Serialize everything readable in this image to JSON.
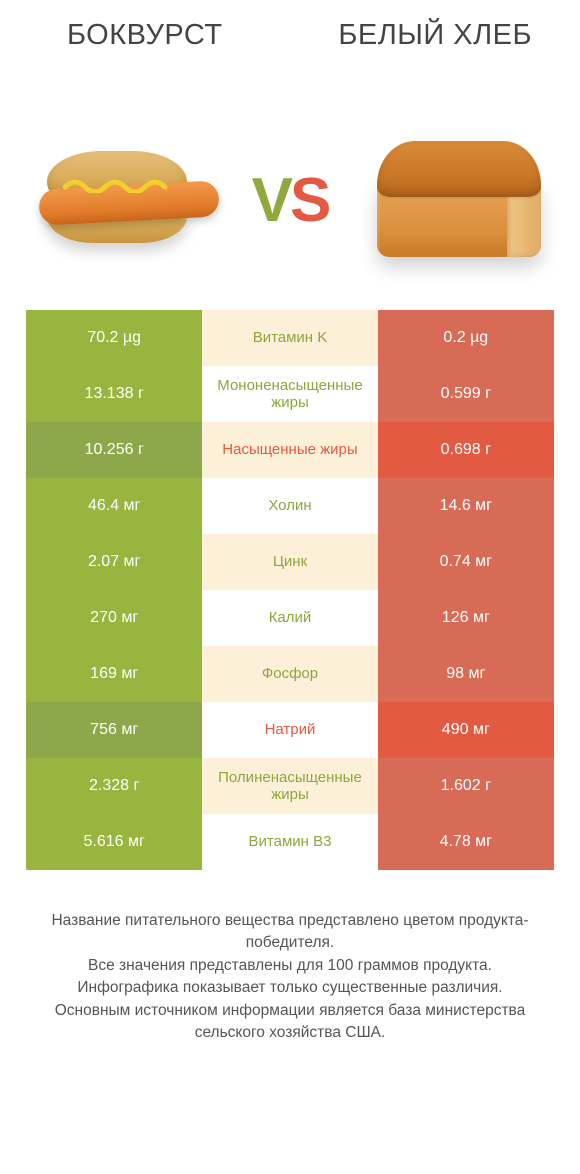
{
  "titles": {
    "left": "БОКВУРСТ",
    "right": "БЕЛЫЙ ХЛЕБ"
  },
  "vs": {
    "v": "V",
    "s": "S"
  },
  "colors": {
    "winner_green": "#98b540",
    "loser_green": "#8da84a",
    "winner_orange": "#e25a41",
    "loser_orange": "#d86b55",
    "mid_text_green": "#8da63e",
    "mid_text_orange": "#e25a41",
    "row_mid_bg_a": "#fdf0d9",
    "row_mid_bg_b": "#ffffff",
    "title_color": "#444444",
    "footnote_color": "#555555",
    "white": "#ffffff"
  },
  "rows": [
    {
      "left": "70.2 µg",
      "mid": "Витамин K",
      "right": "0.2 µg",
      "winner": "left"
    },
    {
      "left": "13.138 г",
      "mid": "Мононенасыщенные жиры",
      "right": "0.599 г",
      "winner": "left"
    },
    {
      "left": "10.256 г",
      "mid": "Насыщенные жиры",
      "right": "0.698 г",
      "winner": "right"
    },
    {
      "left": "46.4 мг",
      "mid": "Холин",
      "right": "14.6 мг",
      "winner": "left"
    },
    {
      "left": "2.07 мг",
      "mid": "Цинк",
      "right": "0.74 мг",
      "winner": "left"
    },
    {
      "left": "270 мг",
      "mid": "Калий",
      "right": "126 мг",
      "winner": "left"
    },
    {
      "left": "169 мг",
      "mid": "Фосфор",
      "right": "98 мг",
      "winner": "left"
    },
    {
      "left": "756 мг",
      "mid": "Натрий",
      "right": "490 мг",
      "winner": "right"
    },
    {
      "left": "2.328 г",
      "mid": "Полиненасыщенные жиры",
      "right": "1.602 г",
      "winner": "left"
    },
    {
      "left": "5.616 мг",
      "mid": "Витамин B3",
      "right": "4.78 мг",
      "winner": "left"
    }
  ],
  "footnote": {
    "l1": "Название питательного вещества представлено цветом продукта-победителя.",
    "l2": "Все значения представлены для 100 граммов продукта.",
    "l3": "Инфографика показывает только существенные различия.",
    "l4": "Основным источником информации является база министерства сельского хозяйства США."
  }
}
